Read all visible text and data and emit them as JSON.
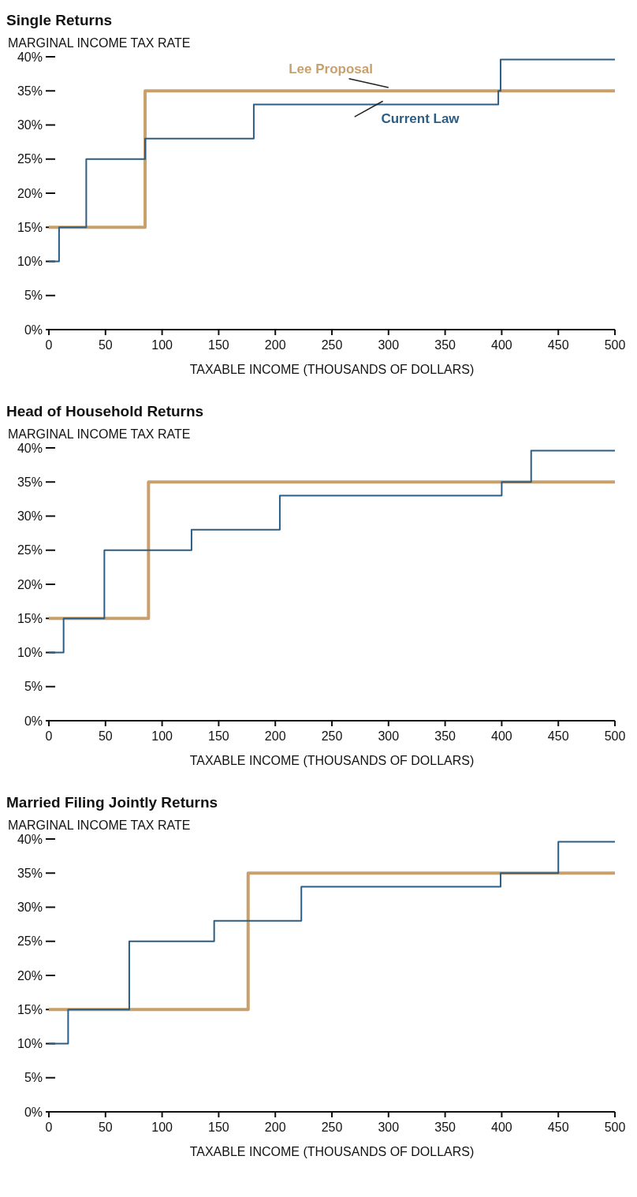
{
  "chart_data": [
    {
      "type": "step",
      "title": "Single Returns",
      "ylabel": "MARGINAL INCOME TAX RATE",
      "xlabel": "TAXABLE INCOME (THOUSANDS OF DOLLARS)",
      "xlim": [
        0,
        500
      ],
      "xticks": [
        0,
        50,
        100,
        150,
        200,
        250,
        300,
        350,
        400,
        450,
        500
      ],
      "ylim": [
        0,
        40
      ],
      "yticks": [
        {
          "value": 0,
          "label": "0%"
        },
        {
          "value": 5,
          "label": "5%"
        },
        {
          "value": 10,
          "label": "10%"
        },
        {
          "value": 15,
          "label": "15%"
        },
        {
          "value": 20,
          "label": "20%"
        },
        {
          "value": 25,
          "label": "25%"
        },
        {
          "value": 30,
          "label": "30%"
        },
        {
          "value": 35,
          "label": "35%"
        },
        {
          "value": 40,
          "label": "40%"
        }
      ],
      "grid": false,
      "marker": "none",
      "line_style": "solid",
      "series": [
        {
          "name": "Lee Proposal",
          "color": "#c9a06c",
          "x": [
            0,
            85,
            500
          ],
          "values": [
            15,
            35,
            35
          ]
        },
        {
          "name": "Current Law",
          "color": "#2c5d84",
          "x": [
            0,
            9,
            33,
            85,
            181,
            397,
            399,
            500
          ],
          "values": [
            10,
            15,
            25,
            28,
            33,
            35,
            39.6,
            39.6
          ]
        }
      ]
    },
    {
      "type": "step",
      "title": "Head of Household Returns",
      "ylabel": "MARGINAL INCOME TAX RATE",
      "xlabel": "TAXABLE INCOME (THOUSANDS OF DOLLARS)",
      "xlim": [
        0,
        500
      ],
      "xticks": [
        0,
        50,
        100,
        150,
        200,
        250,
        300,
        350,
        400,
        450,
        500
      ],
      "ylim": [
        0,
        40
      ],
      "yticks": [
        {
          "value": 0,
          "label": "0%"
        },
        {
          "value": 5,
          "label": "5%"
        },
        {
          "value": 10,
          "label": "10%"
        },
        {
          "value": 15,
          "label": "15%"
        },
        {
          "value": 20,
          "label": "20%"
        },
        {
          "value": 25,
          "label": "25%"
        },
        {
          "value": 30,
          "label": "30%"
        },
        {
          "value": 35,
          "label": "35%"
        },
        {
          "value": 40,
          "label": "40%"
        }
      ],
      "grid": false,
      "marker": "none",
      "line_style": "solid",
      "series": [
        {
          "color": "#c9a06c",
          "x": [
            0,
            88,
            500
          ],
          "values": [
            15,
            35,
            35
          ]
        },
        {
          "color": "#2c5d84",
          "x": [
            0,
            13,
            49,
            126,
            204,
            400,
            426,
            500
          ],
          "values": [
            10,
            15,
            25,
            28,
            33,
            35,
            39.6,
            39.6
          ]
        }
      ]
    },
    {
      "type": "step",
      "title": "Married Filing Jointly Returns",
      "ylabel": "MARGINAL INCOME TAX RATE",
      "xlabel": "TAXABLE INCOME (THOUSANDS OF DOLLARS)",
      "xlim": [
        0,
        500
      ],
      "xticks": [
        0,
        50,
        100,
        150,
        200,
        250,
        300,
        350,
        400,
        450,
        500
      ],
      "ylim": [
        0,
        40
      ],
      "yticks": [
        {
          "value": 0,
          "label": "0%"
        },
        {
          "value": 5,
          "label": "5%"
        },
        {
          "value": 10,
          "label": "10%"
        },
        {
          "value": 15,
          "label": "15%"
        },
        {
          "value": 20,
          "label": "20%"
        },
        {
          "value": 25,
          "label": "25%"
        },
        {
          "value": 30,
          "label": "30%"
        },
        {
          "value": 35,
          "label": "35%"
        },
        {
          "value": 40,
          "label": "40%"
        }
      ],
      "grid": false,
      "marker": "none",
      "line_style": "solid",
      "series": [
        {
          "color": "#c9a06c",
          "x": [
            0,
            176,
            500
          ],
          "values": [
            15,
            35,
            35
          ]
        },
        {
          "color": "#2c5d84",
          "x": [
            0,
            17,
            71,
            146,
            223,
            399,
            450,
            500
          ],
          "values": [
            10,
            15,
            25,
            28,
            33,
            35,
            39.6,
            39.6
          ]
        }
      ]
    }
  ]
}
